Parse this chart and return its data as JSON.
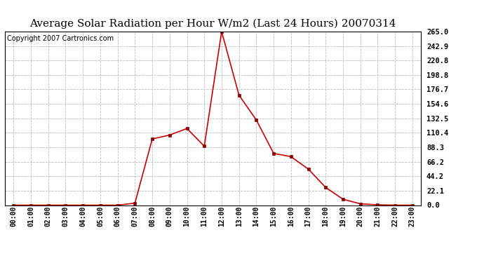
{
  "title": "Average Solar Radiation per Hour W/m2 (Last 24 Hours) 20070314",
  "copyright": "Copyright 2007 Cartronics.com",
  "hours": [
    "00:00",
    "01:00",
    "02:00",
    "03:00",
    "04:00",
    "05:00",
    "06:00",
    "07:00",
    "08:00",
    "09:00",
    "10:00",
    "11:00",
    "12:00",
    "13:00",
    "14:00",
    "15:00",
    "16:00",
    "17:00",
    "18:00",
    "19:00",
    "20:00",
    "21:00",
    "22:00",
    "23:00"
  ],
  "values": [
    0.0,
    0.0,
    0.0,
    0.0,
    0.0,
    0.0,
    0.0,
    3.0,
    101.0,
    107.0,
    117.0,
    90.0,
    265.0,
    168.0,
    130.0,
    79.0,
    74.0,
    55.0,
    27.0,
    9.0,
    2.0,
    0.5,
    0.0,
    0.0
  ],
  "line_color": "#cc0000",
  "marker_color": "#880000",
  "bg_color": "#ffffff",
  "grid_color": "#bbbbbb",
  "title_fontsize": 11,
  "copyright_fontsize": 7,
  "ytick_labels": [
    "0.0",
    "22.1",
    "44.2",
    "66.2",
    "88.3",
    "110.4",
    "132.5",
    "154.6",
    "176.7",
    "198.8",
    "220.8",
    "242.9",
    "265.0"
  ],
  "ytick_values": [
    0.0,
    22.1,
    44.2,
    66.2,
    88.3,
    110.4,
    132.5,
    154.6,
    176.7,
    198.8,
    220.8,
    242.9,
    265.0
  ],
  "ylim": [
    0,
    265.0
  ],
  "ymax": 265.0
}
